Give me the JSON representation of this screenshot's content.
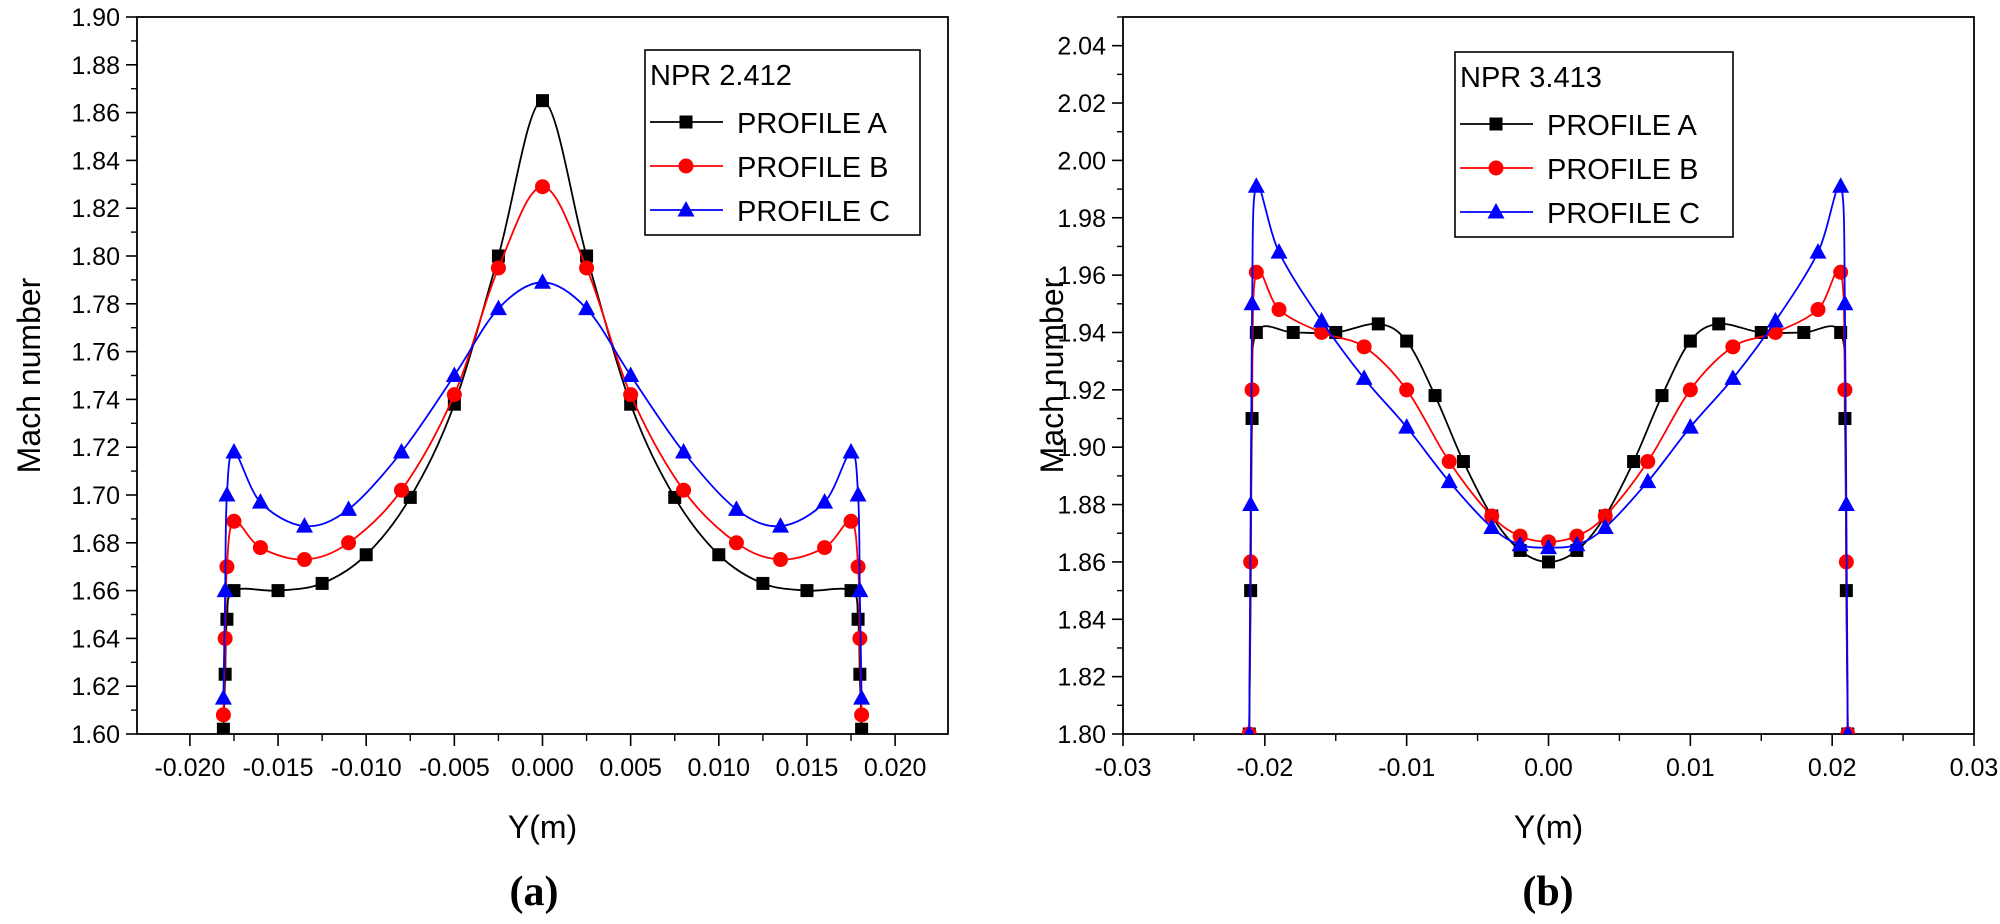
{
  "chart_data": [
    {
      "type": "scatter",
      "panel_label": "(a)",
      "xlabel": "Y(m)",
      "ylabel": "Mach number",
      "xlim": [
        -0.023,
        0.023
      ],
      "ylim": [
        1.6,
        1.9
      ],
      "xticks": [
        "-0.020",
        "-0.015",
        "-0.010",
        "-0.005",
        "0.000",
        "0.005",
        "0.010",
        "0.015",
        "0.020"
      ],
      "yticks": [
        "1.60",
        "1.62",
        "1.64",
        "1.66",
        "1.68",
        "1.70",
        "1.72",
        "1.74",
        "1.76",
        "1.78",
        "1.80",
        "1.82",
        "1.84",
        "1.86",
        "1.88",
        "1.90"
      ],
      "legend_title": "NPR 2.412",
      "legend_position": "top-right",
      "series": [
        {
          "name": "PROFILE A",
          "color": "#000000",
          "marker": "square",
          "x": [
            -0.0181,
            -0.018,
            -0.0179,
            -0.0175,
            -0.015,
            -0.0125,
            -0.01,
            -0.0075,
            -0.005,
            -0.0025,
            0.0,
            0.0025,
            0.005,
            0.0075,
            0.01,
            0.0125,
            0.015,
            0.0175,
            0.0179,
            0.018,
            0.0181
          ],
          "y": [
            1.602,
            1.625,
            1.648,
            1.66,
            1.66,
            1.663,
            1.675,
            1.699,
            1.738,
            1.8,
            1.865,
            1.8,
            1.738,
            1.699,
            1.675,
            1.663,
            1.66,
            1.66,
            1.648,
            1.625,
            1.602
          ]
        },
        {
          "name": "PROFILE B",
          "color": "#ff0000",
          "marker": "circle",
          "x": [
            -0.0181,
            -0.018,
            -0.0179,
            -0.0175,
            -0.016,
            -0.0135,
            -0.011,
            -0.008,
            -0.005,
            -0.0025,
            0.0,
            0.0025,
            0.005,
            0.008,
            0.011,
            0.0135,
            0.016,
            0.0175,
            0.0179,
            0.018,
            0.0181
          ],
          "y": [
            1.608,
            1.64,
            1.67,
            1.689,
            1.678,
            1.673,
            1.68,
            1.702,
            1.742,
            1.795,
            1.829,
            1.795,
            1.742,
            1.702,
            1.68,
            1.673,
            1.678,
            1.689,
            1.67,
            1.64,
            1.608
          ]
        },
        {
          "name": "PROFILE C",
          "color": "#0000ff",
          "marker": "triangle",
          "x": [
            -0.0181,
            -0.018,
            -0.0179,
            -0.0175,
            -0.016,
            -0.0135,
            -0.011,
            -0.008,
            -0.005,
            -0.0025,
            0.0,
            0.0025,
            0.005,
            0.008,
            0.011,
            0.0135,
            0.016,
            0.0175,
            0.0179,
            0.018,
            0.0181
          ],
          "y": [
            1.615,
            1.66,
            1.7,
            1.718,
            1.697,
            1.687,
            1.694,
            1.718,
            1.75,
            1.778,
            1.789,
            1.778,
            1.75,
            1.718,
            1.694,
            1.687,
            1.697,
            1.718,
            1.7,
            1.66,
            1.615
          ]
        }
      ]
    },
    {
      "type": "scatter",
      "panel_label": "(b)",
      "xlabel": "Y(m)",
      "ylabel": "Mach number",
      "xlim": [
        -0.03,
        0.03
      ],
      "ylim": [
        1.8,
        2.05
      ],
      "xticks": [
        "-0.03",
        "-0.02",
        "-0.01",
        "0.00",
        "0.01",
        "0.02",
        "0.03"
      ],
      "yticks": [
        "1.80",
        "1.82",
        "1.84",
        "1.86",
        "1.88",
        "1.90",
        "1.92",
        "1.94",
        "1.96",
        "1.98",
        "2.00",
        "2.02",
        "2.04"
      ],
      "legend_title": "NPR 3.413",
      "legend_position": "top-center",
      "series": [
        {
          "name": "PROFILE A",
          "color": "#000000",
          "marker": "square",
          "x": [
            -0.0211,
            -0.021,
            -0.0209,
            -0.0206,
            -0.018,
            -0.015,
            -0.012,
            -0.01,
            -0.008,
            -0.006,
            -0.004,
            -0.002,
            0.0,
            0.002,
            0.004,
            0.006,
            0.008,
            0.01,
            0.012,
            0.015,
            0.018,
            0.0206,
            0.0209,
            0.021,
            0.0211
          ],
          "y": [
            1.8,
            1.85,
            1.91,
            1.94,
            1.94,
            1.94,
            1.943,
            1.937,
            1.918,
            1.895,
            1.876,
            1.864,
            1.86,
            1.864,
            1.876,
            1.895,
            1.918,
            1.937,
            1.943,
            1.94,
            1.94,
            1.94,
            1.91,
            1.85,
            1.8
          ]
        },
        {
          "name": "PROFILE B",
          "color": "#ff0000",
          "marker": "circle",
          "x": [
            -0.0211,
            -0.021,
            -0.0209,
            -0.0206,
            -0.019,
            -0.016,
            -0.013,
            -0.01,
            -0.007,
            -0.004,
            -0.002,
            0.0,
            0.002,
            0.004,
            0.007,
            0.01,
            0.013,
            0.016,
            0.019,
            0.0206,
            0.0209,
            0.021,
            0.0211
          ],
          "y": [
            1.8,
            1.86,
            1.92,
            1.961,
            1.948,
            1.94,
            1.935,
            1.92,
            1.895,
            1.876,
            1.869,
            1.867,
            1.869,
            1.876,
            1.895,
            1.92,
            1.935,
            1.94,
            1.948,
            1.961,
            1.92,
            1.86,
            1.8
          ]
        },
        {
          "name": "PROFILE C",
          "color": "#0000ff",
          "marker": "triangle",
          "x": [
            -0.0211,
            -0.021,
            -0.0209,
            -0.0206,
            -0.019,
            -0.016,
            -0.013,
            -0.01,
            -0.007,
            -0.004,
            -0.002,
            0.0,
            0.002,
            0.004,
            0.007,
            0.01,
            0.013,
            0.016,
            0.019,
            0.0206,
            0.0209,
            0.021,
            0.0211
          ],
          "y": [
            1.8,
            1.88,
            1.95,
            1.991,
            1.968,
            1.944,
            1.924,
            1.907,
            1.888,
            1.872,
            1.866,
            1.865,
            1.866,
            1.872,
            1.888,
            1.907,
            1.924,
            1.944,
            1.968,
            1.991,
            1.95,
            1.88,
            1.8
          ]
        }
      ]
    }
  ]
}
